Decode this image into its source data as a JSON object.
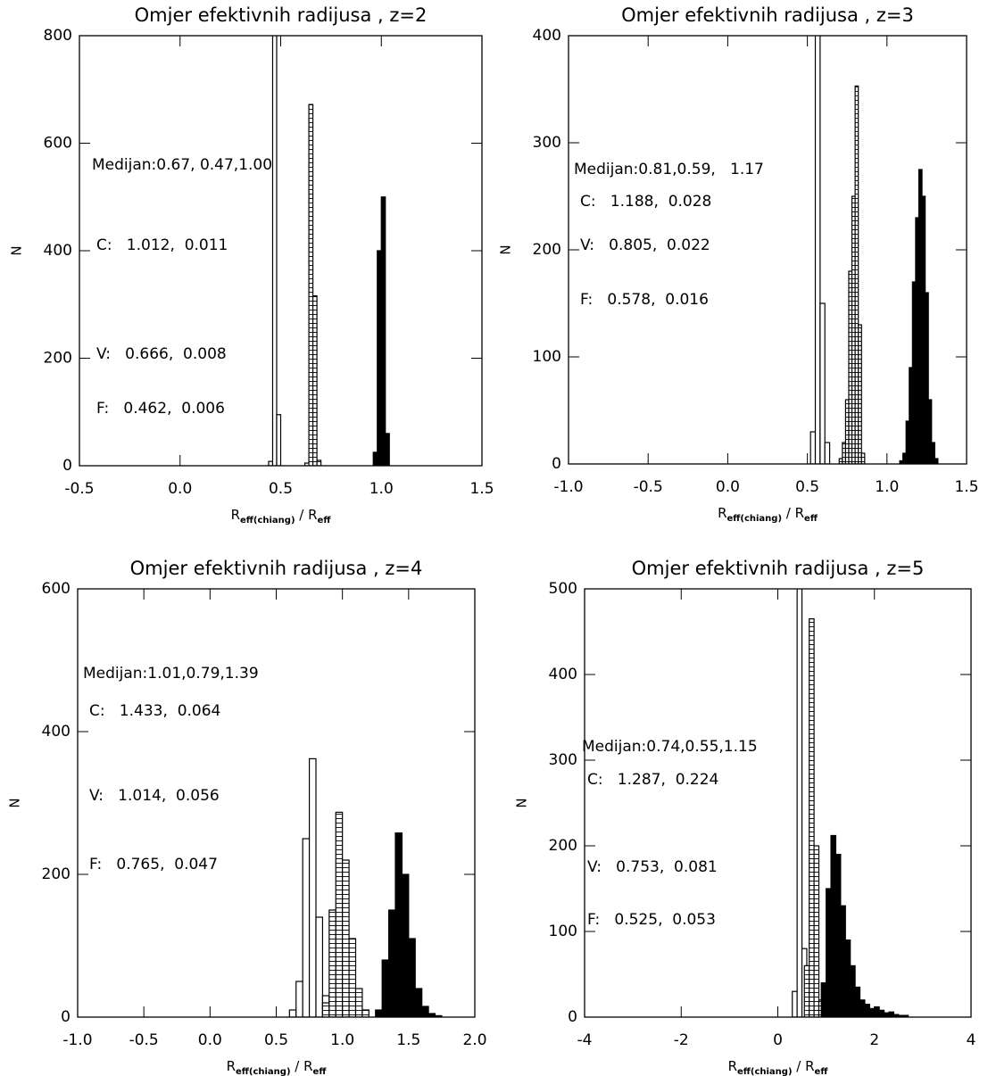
{
  "chart_data": [
    {
      "type": "histogram",
      "title": "Omjer efektivnih radijusa , z=2",
      "xlabel": [
        {
          "text": "R"
        },
        {
          "text": "eff(chiang)",
          "sub": true
        },
        {
          "text": " / R"
        },
        {
          "text": "eff",
          "sub": true
        }
      ],
      "ylabel": "N",
      "xlim": [
        -0.5,
        1.5
      ],
      "xticks": [
        -0.5,
        {
          "value": 0,
          "label": "0.0"
        },
        0.5,
        {
          "value": 1,
          "label": "1.0"
        },
        1.5
      ],
      "ylim": [
        0,
        800
      ],
      "yticks": [
        0,
        200,
        400,
        600,
        800
      ],
      "annotations": [
        "Medijan:0.67, 0.47,1.00",
        "C:   1.012,  0.011",
        "V:   0.666,  0.008",
        "F:   0.462,  0.006"
      ],
      "series": [
        {
          "style": "open",
          "color": "#000000",
          "bins": [
            0.44,
            0.46,
            0.48,
            0.5
          ],
          "counts": [
            8,
            880,
            95
          ]
        },
        {
          "style": "hatched",
          "color": "#000000",
          "bins": [
            0.62,
            0.64,
            0.66,
            0.68,
            0.7
          ],
          "counts": [
            5,
            672,
            316,
            10
          ]
        },
        {
          "style": "filled",
          "color": "#000000",
          "bins": [
            0.96,
            0.98,
            1.0,
            1.02,
            1.04
          ],
          "counts": [
            25,
            400,
            500,
            60
          ]
        }
      ]
    },
    {
      "type": "histogram",
      "title": "Omjer efektivnih radijusa , z=3",
      "xlabel": [
        {
          "text": "R"
        },
        {
          "text": "eff(chiang)",
          "sub": true
        },
        {
          "text": " / R"
        },
        {
          "text": "eff",
          "sub": true
        }
      ],
      "ylabel": "N",
      "xlim": [
        -1,
        1.5
      ],
      "xticks": [
        {
          "value": -1,
          "label": "-1.0"
        },
        -0.5,
        {
          "value": 0,
          "label": "0.0"
        },
        0.5,
        {
          "value": 1,
          "label": "1.0"
        },
        1.5
      ],
      "ylim": [
        0,
        400
      ],
      "yticks": [
        0,
        100,
        200,
        300,
        400
      ],
      "annotations": [
        "Medijan:0.81,0.59,   1.17",
        "C:   1.188,  0.028",
        "V:   0.805,  0.022",
        "F:   0.578,  0.016"
      ],
      "series": [
        {
          "style": "open",
          "color": "#000000",
          "bins": [
            0.52,
            0.55,
            0.58,
            0.61,
            0.64
          ],
          "counts": [
            30,
            450,
            150,
            20
          ]
        },
        {
          "style": "hatched",
          "color": "#000000",
          "bins": [
            0.7,
            0.72,
            0.74,
            0.76,
            0.78,
            0.8,
            0.82,
            0.84,
            0.86
          ],
          "counts": [
            5,
            20,
            60,
            180,
            250,
            353,
            130,
            10
          ]
        },
        {
          "style": "filled",
          "color": "#000000",
          "bins": [
            1.08,
            1.1,
            1.12,
            1.14,
            1.16,
            1.18,
            1.2,
            1.22,
            1.24,
            1.26,
            1.28,
            1.3,
            1.32
          ],
          "counts": [
            3,
            10,
            40,
            90,
            170,
            230,
            275,
            250,
            160,
            60,
            20,
            5
          ]
        }
      ]
    },
    {
      "type": "histogram",
      "title": "Omjer efektivnih radijusa , z=4",
      "xlabel": [
        {
          "text": "R"
        },
        {
          "text": "eff(chiang)",
          "sub": true
        },
        {
          "text": " / R"
        },
        {
          "text": "eff",
          "sub": true
        }
      ],
      "ylabel": "N",
      "xlim": [
        -1,
        2
      ],
      "xticks": [
        {
          "value": -1,
          "label": "-1.0"
        },
        -0.5,
        {
          "value": 0,
          "label": "0.0"
        },
        0.5,
        {
          "value": 1,
          "label": "1.0"
        },
        1.5,
        {
          "value": 2,
          "label": "2.0"
        }
      ],
      "ylim": [
        0,
        600
      ],
      "yticks": [
        0,
        200,
        400,
        600
      ],
      "annotations": [
        "Medijan:1.01,0.79,1.39",
        "C:   1.433,  0.064",
        "V:   1.014,  0.056",
        "F:   0.765,  0.047"
      ],
      "series": [
        {
          "style": "open",
          "color": "#000000",
          "bins": [
            0.6,
            0.65,
            0.7,
            0.75,
            0.8,
            0.85,
            0.9
          ],
          "counts": [
            10,
            50,
            250,
            362,
            140,
            30
          ]
        },
        {
          "style": "hatched",
          "color": "#000000",
          "bins": [
            0.85,
            0.9,
            0.95,
            1.0,
            1.05,
            1.1,
            1.15,
            1.2
          ],
          "counts": [
            20,
            150,
            287,
            220,
            110,
            40,
            10
          ]
        },
        {
          "style": "filled",
          "color": "#000000",
          "bins": [
            1.25,
            1.3,
            1.35,
            1.4,
            1.45,
            1.5,
            1.55,
            1.6,
            1.65,
            1.7,
            1.75
          ],
          "counts": [
            10,
            80,
            150,
            258,
            200,
            110,
            40,
            15,
            5,
            2
          ]
        }
      ]
    },
    {
      "type": "histogram",
      "title": "Omjer efektivnih radijusa , z=5",
      "xlabel": [
        {
          "text": "R"
        },
        {
          "text": "eff(chiang)",
          "sub": true
        },
        {
          "text": " / R"
        },
        {
          "text": "eff",
          "sub": true
        }
      ],
      "ylabel": "N",
      "xlim": [
        -4,
        4
      ],
      "xticks": [
        -4,
        -2,
        0,
        2,
        4
      ],
      "ylim": [
        0,
        500
      ],
      "yticks": [
        0,
        100,
        200,
        300,
        400,
        500
      ],
      "annotations": [
        "Medijan:0.74,0.55,1.15",
        "C:   1.287,  0.224",
        "V:   0.753,  0.081",
        "F:   0.525,  0.053"
      ],
      "series": [
        {
          "style": "open",
          "color": "#000000",
          "bins": [
            0.3,
            0.4,
            0.5,
            0.6
          ],
          "counts": [
            30,
            510,
            80
          ]
        },
        {
          "style": "hatched",
          "color": "#000000",
          "bins": [
            0.55,
            0.65,
            0.75,
            0.85,
            0.95
          ],
          "counts": [
            60,
            465,
            200,
            20
          ]
        },
        {
          "style": "filled",
          "color": "#000000",
          "bins": [
            0.9,
            1.0,
            1.1,
            1.2,
            1.3,
            1.4,
            1.5,
            1.6,
            1.7,
            1.8,
            1.9,
            2.0,
            2.1,
            2.2,
            2.3,
            2.4,
            2.5,
            2.6,
            2.7
          ],
          "counts": [
            40,
            150,
            212,
            190,
            130,
            90,
            60,
            35,
            20,
            15,
            10,
            12,
            8,
            5,
            6,
            3,
            2,
            2
          ]
        }
      ]
    }
  ]
}
